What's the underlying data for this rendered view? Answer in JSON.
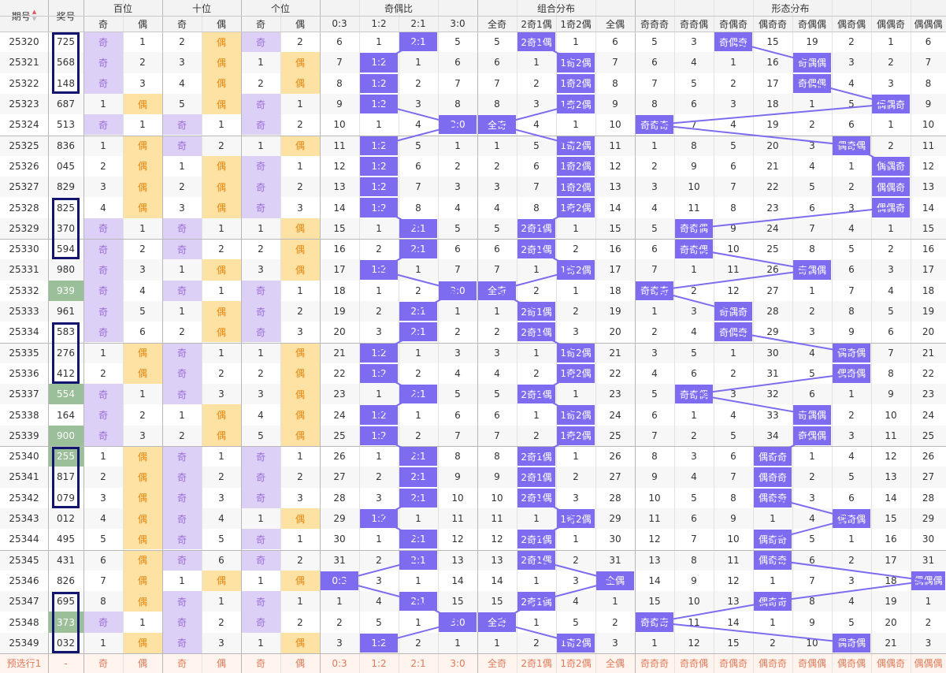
{
  "header": {
    "issue": "期号",
    "prize": "奖号",
    "sort_up": "▲",
    "sort_down": "▼",
    "groups": [
      {
        "key": "hund",
        "label": "百位"
      },
      {
        "key": "tens",
        "label": "十位"
      },
      {
        "key": "ones",
        "label": "个位"
      },
      {
        "key": "ratio",
        "label": "奇偶比"
      },
      {
        "key": "combo",
        "label": "组合分布"
      },
      {
        "key": "shape",
        "label": "形态分布"
      }
    ],
    "sub": {
      "hund": [
        "奇",
        "偶"
      ],
      "tens": [
        "奇",
        "偶"
      ],
      "ones": [
        "奇",
        "偶"
      ],
      "ratio": [
        "0:3",
        "1:2",
        "2:1",
        "3:0"
      ],
      "combo": [
        "全奇",
        "2奇1偶",
        "1奇2偶",
        "全偶"
      ],
      "shape": [
        "奇奇奇",
        "奇奇偶",
        "奇偶奇",
        "偶奇奇",
        "奇偶偶",
        "偶奇偶",
        "偶偶奇",
        "偶偶偶"
      ]
    }
  },
  "rows": [
    {
      "issue": "25320",
      "prize": "725",
      "hund": [
        "奇",
        "1"
      ],
      "tens": [
        "2",
        "偶"
      ],
      "ones": [
        "奇",
        "2"
      ],
      "ratio": [
        "6",
        "1",
        "2:1",
        "5"
      ],
      "combo": [
        "5",
        "2奇1偶",
        "1",
        "6"
      ],
      "shape": [
        "5",
        "3",
        "奇偶奇",
        "15",
        "19",
        "2",
        "1",
        "6"
      ]
    },
    {
      "issue": "25321",
      "prize": "568",
      "hund": [
        "奇",
        "2"
      ],
      "tens": [
        "3",
        "偶"
      ],
      "ones": [
        "1",
        "偶"
      ],
      "ratio": [
        "7",
        "1:2",
        "1",
        "6"
      ],
      "combo": [
        "6",
        "1",
        "1奇2偶",
        "7"
      ],
      "shape": [
        "6",
        "4",
        "1",
        "16",
        "奇偶偶",
        "3",
        "2",
        "7"
      ]
    },
    {
      "issue": "25322",
      "prize": "148",
      "hund": [
        "奇",
        "3"
      ],
      "tens": [
        "4",
        "偶"
      ],
      "ones": [
        "2",
        "偶"
      ],
      "ratio": [
        "8",
        "1:2",
        "2",
        "7"
      ],
      "combo": [
        "7",
        "2",
        "1奇2偶",
        "8"
      ],
      "shape": [
        "7",
        "5",
        "2",
        "17",
        "奇偶偶",
        "4",
        "3",
        "8"
      ]
    },
    {
      "issue": "25323",
      "prize": "687",
      "hund": [
        "1",
        "偶"
      ],
      "tens": [
        "5",
        "偶"
      ],
      "ones": [
        "奇",
        "1"
      ],
      "ratio": [
        "9",
        "1:2",
        "3",
        "8"
      ],
      "combo": [
        "8",
        "3",
        "1奇2偶",
        "9"
      ],
      "shape": [
        "8",
        "6",
        "3",
        "18",
        "1",
        "5",
        "偶偶奇",
        "9"
      ]
    },
    {
      "issue": "25324",
      "prize": "513",
      "hund": [
        "奇",
        "1"
      ],
      "tens": [
        "奇",
        "1"
      ],
      "ones": [
        "奇",
        "2"
      ],
      "ratio": [
        "10",
        "1",
        "4",
        "3:0"
      ],
      "combo": [
        "全奇",
        "4",
        "1",
        "10"
      ],
      "shape": [
        "奇奇奇",
        "7",
        "4",
        "19",
        "2",
        "6",
        "1",
        "10"
      ]
    },
    {
      "issue": "25325",
      "prize": "836",
      "hund": [
        "1",
        "偶"
      ],
      "tens": [
        "奇",
        "2"
      ],
      "ones": [
        "1",
        "偶"
      ],
      "ratio": [
        "11",
        "1:2",
        "5",
        "1"
      ],
      "combo": [
        "1",
        "5",
        "1奇2偶",
        "11"
      ],
      "shape": [
        "1",
        "8",
        "5",
        "20",
        "3",
        "偶奇偶",
        "2",
        "11"
      ]
    },
    {
      "issue": "25326",
      "prize": "045",
      "hund": [
        "2",
        "偶"
      ],
      "tens": [
        "1",
        "偶"
      ],
      "ones": [
        "奇",
        "1"
      ],
      "ratio": [
        "12",
        "1:2",
        "6",
        "2"
      ],
      "combo": [
        "2",
        "6",
        "1奇2偶",
        "12"
      ],
      "shape": [
        "2",
        "9",
        "6",
        "21",
        "4",
        "1",
        "偶偶奇",
        "12"
      ]
    },
    {
      "issue": "25327",
      "prize": "829",
      "hund": [
        "3",
        "偶"
      ],
      "tens": [
        "2",
        "偶"
      ],
      "ones": [
        "奇",
        "2"
      ],
      "ratio": [
        "13",
        "1:2",
        "7",
        "3"
      ],
      "combo": [
        "3",
        "7",
        "1奇2偶",
        "13"
      ],
      "shape": [
        "3",
        "10",
        "7",
        "22",
        "5",
        "2",
        "偶偶奇",
        "13"
      ]
    },
    {
      "issue": "25328",
      "prize": "825",
      "hund": [
        "4",
        "偶"
      ],
      "tens": [
        "3",
        "偶"
      ],
      "ones": [
        "奇",
        "3"
      ],
      "ratio": [
        "14",
        "1:2",
        "8",
        "4"
      ],
      "combo": [
        "4",
        "8",
        "1奇2偶",
        "14"
      ],
      "shape": [
        "4",
        "11",
        "8",
        "23",
        "6",
        "3",
        "偶偶奇",
        "14"
      ]
    },
    {
      "issue": "25329",
      "prize": "370",
      "hund": [
        "奇",
        "1"
      ],
      "tens": [
        "奇",
        "1"
      ],
      "ones": [
        "1",
        "偶"
      ],
      "ratio": [
        "15",
        "1",
        "2:1",
        "5"
      ],
      "combo": [
        "5",
        "2奇1偶",
        "1",
        "15"
      ],
      "shape": [
        "5",
        "奇奇偶",
        "9",
        "24",
        "7",
        "4",
        "1",
        "15"
      ]
    },
    {
      "issue": "25330",
      "prize": "594",
      "hund": [
        "奇",
        "2"
      ],
      "tens": [
        "奇",
        "2"
      ],
      "ones": [
        "2",
        "偶"
      ],
      "ratio": [
        "16",
        "2",
        "2:1",
        "6"
      ],
      "combo": [
        "6",
        "2奇1偶",
        "2",
        "16"
      ],
      "shape": [
        "6",
        "奇奇偶",
        "10",
        "25",
        "8",
        "5",
        "2",
        "16"
      ]
    },
    {
      "issue": "25331",
      "prize": "980",
      "hund": [
        "奇",
        "3"
      ],
      "tens": [
        "1",
        "偶"
      ],
      "ones": [
        "3",
        "偶"
      ],
      "ratio": [
        "17",
        "1:2",
        "1",
        "7"
      ],
      "combo": [
        "7",
        "1",
        "1奇2偶",
        "17"
      ],
      "shape": [
        "7",
        "1",
        "11",
        "26",
        "奇偶偶",
        "6",
        "3",
        "17"
      ]
    },
    {
      "issue": "25332",
      "prize": "939",
      "hund": [
        "奇",
        "4"
      ],
      "tens": [
        "奇",
        "1"
      ],
      "ones": [
        "奇",
        "1"
      ],
      "ratio": [
        "18",
        "1",
        "2",
        "3:0"
      ],
      "combo": [
        "全奇",
        "2",
        "1",
        "18"
      ],
      "shape": [
        "奇奇奇",
        "2",
        "12",
        "27",
        "1",
        "7",
        "4",
        "18"
      ]
    },
    {
      "issue": "25333",
      "prize": "961",
      "hund": [
        "奇",
        "5"
      ],
      "tens": [
        "1",
        "偶"
      ],
      "ones": [
        "奇",
        "2"
      ],
      "ratio": [
        "19",
        "2",
        "2:1",
        "1"
      ],
      "combo": [
        "1",
        "2奇1偶",
        "2",
        "19"
      ],
      "shape": [
        "1",
        "3",
        "奇偶奇",
        "28",
        "2",
        "8",
        "5",
        "19"
      ]
    },
    {
      "issue": "25334",
      "prize": "583",
      "hund": [
        "奇",
        "6"
      ],
      "tens": [
        "2",
        "偶"
      ],
      "ones": [
        "奇",
        "3"
      ],
      "ratio": [
        "20",
        "3",
        "2:1",
        "2"
      ],
      "combo": [
        "2",
        "2奇1偶",
        "3",
        "20"
      ],
      "shape": [
        "2",
        "4",
        "奇偶奇",
        "29",
        "3",
        "9",
        "6",
        "20"
      ]
    },
    {
      "issue": "25335",
      "prize": "276",
      "hund": [
        "1",
        "偶"
      ],
      "tens": [
        "奇",
        "1"
      ],
      "ones": [
        "1",
        "偶"
      ],
      "ratio": [
        "21",
        "1:2",
        "1",
        "3"
      ],
      "combo": [
        "3",
        "1",
        "1奇2偶",
        "21"
      ],
      "shape": [
        "3",
        "5",
        "1",
        "30",
        "4",
        "偶奇偶",
        "7",
        "21"
      ]
    },
    {
      "issue": "25336",
      "prize": "412",
      "hund": [
        "2",
        "偶"
      ],
      "tens": [
        "奇",
        "2"
      ],
      "ones": [
        "2",
        "偶"
      ],
      "ratio": [
        "22",
        "1:2",
        "2",
        "4"
      ],
      "combo": [
        "4",
        "2",
        "1奇2偶",
        "22"
      ],
      "shape": [
        "4",
        "6",
        "2",
        "31",
        "5",
        "偶奇偶",
        "8",
        "22"
      ]
    },
    {
      "issue": "25337",
      "prize": "554",
      "hund": [
        "奇",
        "1"
      ],
      "tens": [
        "奇",
        "3"
      ],
      "ones": [
        "3",
        "偶"
      ],
      "ratio": [
        "23",
        "1",
        "2:1",
        "5"
      ],
      "combo": [
        "5",
        "2奇1偶",
        "1",
        "23"
      ],
      "shape": [
        "5",
        "奇奇偶",
        "3",
        "32",
        "6",
        "1",
        "9",
        "23"
      ]
    },
    {
      "issue": "25338",
      "prize": "164",
      "hund": [
        "奇",
        "2"
      ],
      "tens": [
        "1",
        "偶"
      ],
      "ones": [
        "4",
        "偶"
      ],
      "ratio": [
        "24",
        "1:2",
        "1",
        "6"
      ],
      "combo": [
        "6",
        "1",
        "1奇2偶",
        "24"
      ],
      "shape": [
        "6",
        "1",
        "4",
        "33",
        "奇偶偶",
        "2",
        "10",
        "24"
      ]
    },
    {
      "issue": "25339",
      "prize": "900",
      "hund": [
        "奇",
        "3"
      ],
      "tens": [
        "2",
        "偶"
      ],
      "ones": [
        "5",
        "偶"
      ],
      "ratio": [
        "25",
        "1:2",
        "2",
        "7"
      ],
      "combo": [
        "7",
        "2",
        "1奇2偶",
        "25"
      ],
      "shape": [
        "7",
        "2",
        "5",
        "34",
        "奇偶偶",
        "3",
        "11",
        "25"
      ]
    },
    {
      "issue": "25340",
      "prize": "255",
      "hund": [
        "1",
        "偶"
      ],
      "tens": [
        "奇",
        "1"
      ],
      "ones": [
        "奇",
        "1"
      ],
      "ratio": [
        "26",
        "1",
        "2:1",
        "8"
      ],
      "combo": [
        "8",
        "2奇1偶",
        "1",
        "26"
      ],
      "shape": [
        "8",
        "3",
        "6",
        "偶奇奇",
        "1",
        "4",
        "12",
        "26"
      ]
    },
    {
      "issue": "25341",
      "prize": "817",
      "hund": [
        "2",
        "偶"
      ],
      "tens": [
        "奇",
        "2"
      ],
      "ones": [
        "奇",
        "2"
      ],
      "ratio": [
        "27",
        "2",
        "2:1",
        "9"
      ],
      "combo": [
        "9",
        "2奇1偶",
        "2",
        "27"
      ],
      "shape": [
        "9",
        "4",
        "7",
        "偶奇奇",
        "2",
        "5",
        "13",
        "27"
      ]
    },
    {
      "issue": "25342",
      "prize": "079",
      "hund": [
        "3",
        "偶"
      ],
      "tens": [
        "奇",
        "3"
      ],
      "ones": [
        "奇",
        "3"
      ],
      "ratio": [
        "28",
        "3",
        "2:1",
        "10"
      ],
      "combo": [
        "10",
        "2奇1偶",
        "3",
        "28"
      ],
      "shape": [
        "10",
        "5",
        "8",
        "偶奇奇",
        "3",
        "6",
        "14",
        "28"
      ]
    },
    {
      "issue": "25343",
      "prize": "012",
      "hund": [
        "4",
        "偶"
      ],
      "tens": [
        "奇",
        "4"
      ],
      "ones": [
        "1",
        "偶"
      ],
      "ratio": [
        "29",
        "1:2",
        "1",
        "11"
      ],
      "combo": [
        "11",
        "1",
        "1奇2偶",
        "29"
      ],
      "shape": [
        "11",
        "6",
        "9",
        "1",
        "4",
        "偶奇偶",
        "15",
        "29"
      ]
    },
    {
      "issue": "25344",
      "prize": "495",
      "hund": [
        "5",
        "偶"
      ],
      "tens": [
        "奇",
        "5"
      ],
      "ones": [
        "奇",
        "1"
      ],
      "ratio": [
        "30",
        "1",
        "2:1",
        "12"
      ],
      "combo": [
        "12",
        "2奇1偶",
        "1",
        "30"
      ],
      "shape": [
        "12",
        "7",
        "10",
        "偶奇奇",
        "5",
        "1",
        "16",
        "30"
      ]
    },
    {
      "issue": "25345",
      "prize": "431",
      "hund": [
        "6",
        "偶"
      ],
      "tens": [
        "奇",
        "6"
      ],
      "ones": [
        "奇",
        "2"
      ],
      "ratio": [
        "31",
        "2",
        "2:1",
        "13"
      ],
      "combo": [
        "13",
        "2奇1偶",
        "2",
        "31"
      ],
      "shape": [
        "13",
        "8",
        "11",
        "偶奇奇",
        "6",
        "2",
        "17",
        "31"
      ]
    },
    {
      "issue": "25346",
      "prize": "826",
      "hund": [
        "7",
        "偶"
      ],
      "tens": [
        "1",
        "偶"
      ],
      "ones": [
        "1",
        "偶"
      ],
      "ratio": [
        "0:3",
        "3",
        "1",
        "14"
      ],
      "combo": [
        "14",
        "1",
        "3",
        "全偶"
      ],
      "shape": [
        "14",
        "9",
        "12",
        "1",
        "7",
        "3",
        "18",
        "偶偶偶"
      ]
    },
    {
      "issue": "25347",
      "prize": "695",
      "hund": [
        "8",
        "偶"
      ],
      "tens": [
        "奇",
        "1"
      ],
      "ones": [
        "奇",
        "1"
      ],
      "ratio": [
        "1",
        "4",
        "2:1",
        "15"
      ],
      "combo": [
        "15",
        "2奇1偶",
        "4",
        "1"
      ],
      "shape": [
        "15",
        "10",
        "13",
        "偶奇奇",
        "8",
        "4",
        "19",
        "1"
      ]
    },
    {
      "issue": "25348",
      "prize": "373",
      "hund": [
        "奇",
        "1"
      ],
      "tens": [
        "奇",
        "2"
      ],
      "ones": [
        "奇",
        "2"
      ],
      "ratio": [
        "2",
        "5",
        "1",
        "3:0"
      ],
      "combo": [
        "全奇",
        "1",
        "5",
        "2"
      ],
      "shape": [
        "奇奇奇",
        "11",
        "14",
        "1",
        "9",
        "5",
        "20",
        "2"
      ]
    },
    {
      "issue": "25349",
      "prize": "032",
      "hund": [
        "1",
        "偶"
      ],
      "tens": [
        "奇",
        "3"
      ],
      "ones": [
        "1",
        "偶"
      ],
      "ratio": [
        "3",
        "1:2",
        "2",
        "1"
      ],
      "combo": [
        "1",
        "2",
        "1奇2偶",
        "3"
      ],
      "shape": [
        "1",
        "12",
        "15",
        "2",
        "10",
        "偶奇偶",
        "21",
        "3"
      ]
    }
  ],
  "predict": {
    "label": "预选行1",
    "prize": "-",
    "hund": [
      "奇",
      "偶"
    ],
    "tens": [
      "奇",
      "偶"
    ],
    "ones": [
      "奇",
      "偶"
    ],
    "ratio": [
      "0:3",
      "1:2",
      "2:1",
      "3:0"
    ],
    "combo": [
      "全奇",
      "2奇1偶",
      "1奇2偶",
      "全偶"
    ],
    "shape": [
      "奇奇奇",
      "奇奇偶",
      "奇偶奇",
      "偶奇奇",
      "奇偶偶",
      "偶奇偶",
      "偶偶奇",
      "偶偶偶"
    ]
  },
  "green_prize_rows": [
    "25332",
    "25337",
    "25339",
    "25340",
    "25348"
  ],
  "framed_prize_groups": [
    [
      "25320",
      "25322"
    ],
    [
      "25328",
      "25330"
    ],
    [
      "25334",
      "25336"
    ],
    [
      "25340",
      "25342"
    ],
    [
      "25347",
      "25349"
    ]
  ],
  "colors": {
    "hit": "#7d6cf0",
    "odd_bg": "#ddd0f7",
    "even_bg": "#fde2a4",
    "green": "#9bbf99",
    "frame": "#12156e",
    "line": "#7d6cf0"
  }
}
